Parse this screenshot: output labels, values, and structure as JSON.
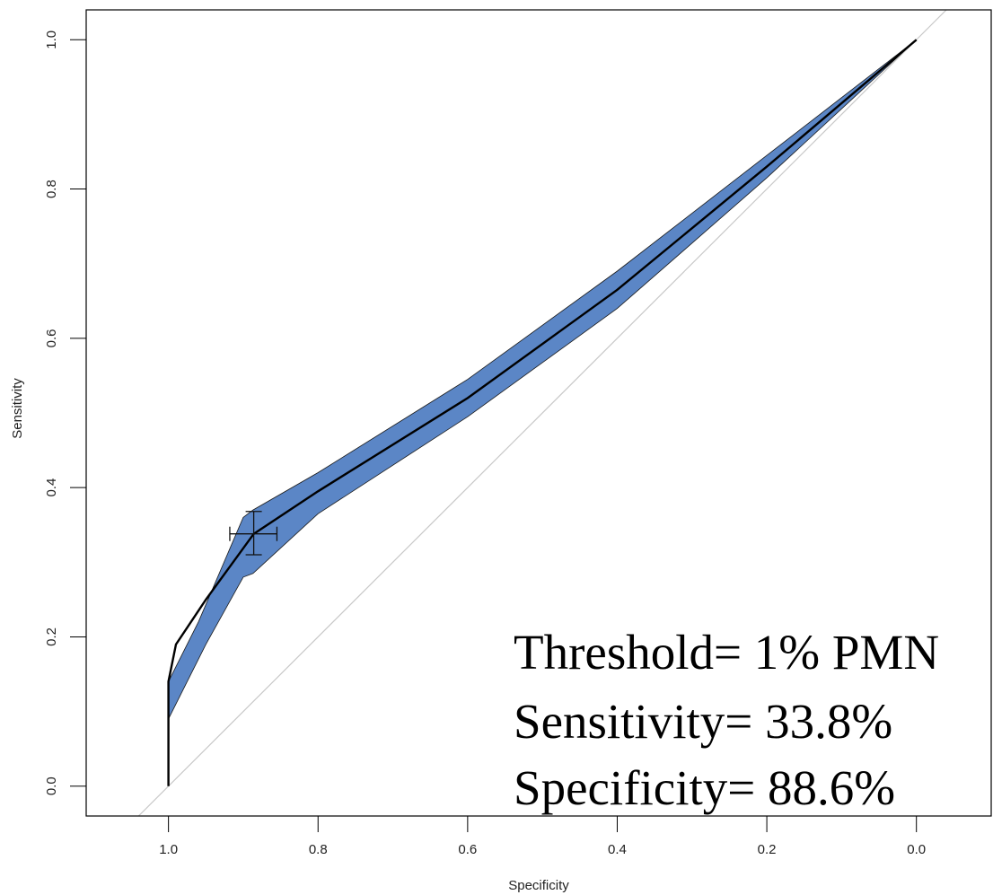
{
  "chart_data": {
    "type": "line",
    "xlabel": "Specificity",
    "ylabel": "Sensitivity",
    "xlim": [
      1.11,
      -0.1
    ],
    "ylim": [
      -0.04,
      1.04
    ],
    "x_reversed": true,
    "x_ticks": [
      1.0,
      0.8,
      0.6,
      0.4,
      0.2,
      0.0
    ],
    "x_tick_labels": [
      "1.0",
      "0.8",
      "0.6",
      "0.4",
      "0.2",
      "0.0"
    ],
    "y_ticks": [
      0.0,
      0.2,
      0.4,
      0.6,
      0.8,
      1.0
    ],
    "y_tick_labels": [
      "0.0",
      "0.2",
      "0.4",
      "0.6",
      "0.8",
      "1.0"
    ],
    "grid": false,
    "confidence_band_color": "#5b86c6",
    "diagonal_color": "#c8c8c8",
    "curve_color": "#000000",
    "series": [
      {
        "role": "roc-curve",
        "points": [
          [
            1.0,
            0.0
          ],
          [
            1.0,
            0.14
          ],
          [
            0.99,
            0.19
          ],
          [
            0.95,
            0.25
          ],
          [
            0.886,
            0.338
          ],
          [
            0.8,
            0.395
          ],
          [
            0.6,
            0.52
          ],
          [
            0.4,
            0.665
          ],
          [
            0.2,
            0.83
          ],
          [
            0.0,
            1.0
          ]
        ]
      },
      {
        "role": "ci-upper",
        "points": [
          [
            1.0,
            0.14
          ],
          [
            0.96,
            0.22
          ],
          [
            0.9,
            0.36
          ],
          [
            0.887,
            0.37
          ],
          [
            0.8,
            0.42
          ],
          [
            0.6,
            0.545
          ],
          [
            0.4,
            0.69
          ],
          [
            0.2,
            0.845
          ],
          [
            0.0,
            1.0
          ]
        ]
      },
      {
        "role": "ci-lower",
        "points": [
          [
            1.0,
            0.09
          ],
          [
            0.95,
            0.19
          ],
          [
            0.9,
            0.28
          ],
          [
            0.887,
            0.285
          ],
          [
            0.8,
            0.365
          ],
          [
            0.6,
            0.495
          ],
          [
            0.4,
            0.64
          ],
          [
            0.2,
            0.815
          ],
          [
            0.0,
            1.0
          ]
        ]
      }
    ],
    "reference_line": [
      [
        1.04,
        -0.04
      ],
      [
        -0.04,
        1.04
      ]
    ],
    "operating_point": {
      "specificity": 0.886,
      "sensitivity": 0.338,
      "spec_ci": [
        0.855,
        0.918
      ],
      "sens_ci": [
        0.31,
        0.368
      ]
    },
    "annotations": [
      "Threshold= 1% PMN",
      "Sensitivity= 33.8%",
      "Specificity= 88.6%"
    ]
  }
}
